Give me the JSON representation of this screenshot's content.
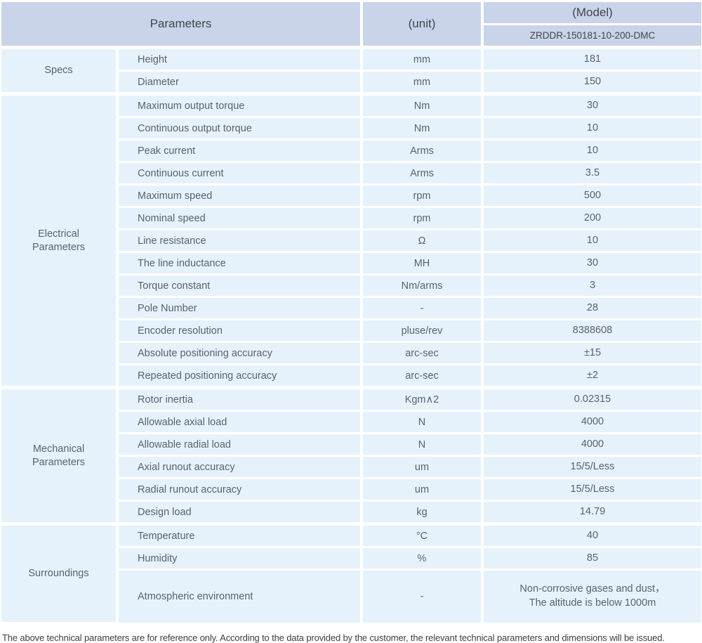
{
  "table": {
    "header": {
      "parameters_label": "Parameters",
      "unit_label": "(unit)",
      "model_label": "(Model)",
      "model_code": "ZRDDR-150181-10-200-DMC"
    },
    "groups": [
      {
        "name": "Specs",
        "rows": [
          [
            "Height",
            "mm",
            "181"
          ],
          [
            "Diameter",
            "mm",
            "150"
          ]
        ]
      },
      {
        "name": "Electrical\nParameters",
        "rows": [
          [
            "Maximum output torque",
            "Nm",
            "30"
          ],
          [
            "Continuous output torque",
            "Nm",
            "10"
          ],
          [
            "Peak current",
            "Arms",
            "10"
          ],
          [
            "Continuous current",
            "Arms",
            "3.5"
          ],
          [
            "Maximum speed",
            "rpm",
            "500"
          ],
          [
            "Nominal speed",
            "rpm",
            "200"
          ],
          [
            "Line resistance",
            "Ω",
            "10"
          ],
          [
            "The line inductance",
            "MH",
            "30"
          ],
          [
            "Torque constant",
            "Nm/arms",
            "3"
          ],
          [
            "Pole Number",
            "-",
            "28"
          ],
          [
            "Encoder resolution",
            "pluse/rev",
            "8388608"
          ],
          [
            "Absolute positioning accuracy",
            "arc-sec",
            "±15"
          ],
          [
            "Repeated positioning accuracy",
            "arc-sec",
            "±2"
          ]
        ]
      },
      {
        "name": "Mechanical\nParameters",
        "rows": [
          [
            "Rotor inertia",
            "Kgm∧2",
            "0.02315"
          ],
          [
            "Allowable axial load",
            "N",
            "4000"
          ],
          [
            "Allowable radial load",
            "N",
            "4000"
          ],
          [
            "Axial runout accuracy",
            "um",
            "15/5/Less"
          ],
          [
            "Radial runout accuracy",
            "um",
            "15/5/Less"
          ],
          [
            "Design load",
            "kg",
            "14.79"
          ]
        ]
      },
      {
        "name": "Surroundings",
        "rows": [
          [
            "Temperature",
            "°C",
            "40"
          ],
          [
            "Humidity",
            "%",
            "85"
          ],
          [
            "Atmospheric environment",
            "-",
            "Non-corrosive gases and dust，\nThe altitude is below 1000m"
          ]
        ]
      }
    ],
    "tall_rows": [
      [
        3,
        2
      ]
    ]
  },
  "footnote": "The above technical parameters are for reference only. According to the data provided by the customer, the relevant technical parameters and dimensions will be issued.",
  "colors": {
    "header_bg": "#c9d3e9",
    "body_bg": "#e6f2fb",
    "border": "#ffffff",
    "header_text": "#41464d",
    "body_text": "#5a626b"
  }
}
